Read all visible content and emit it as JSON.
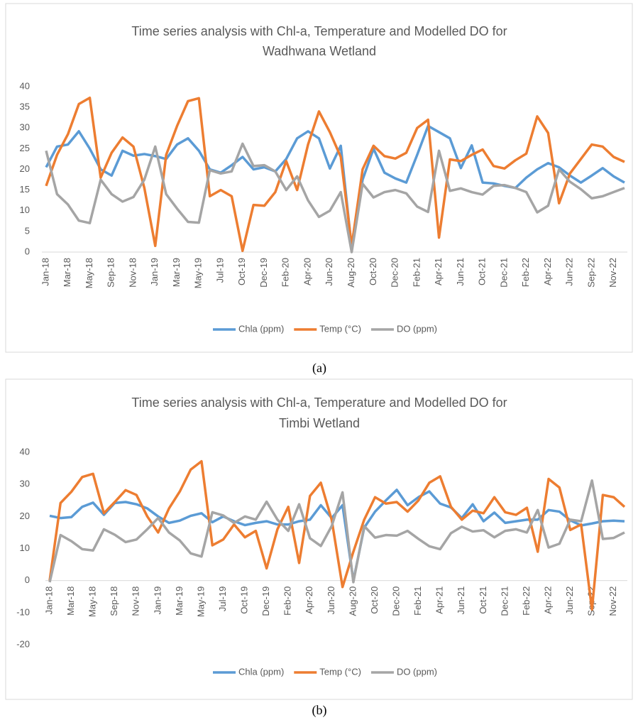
{
  "chart_data": [
    {
      "type": "line",
      "panel_label": "(a)",
      "title": [
        "Time series analysis with Chl-a, Temperature and Modelled DO for",
        "Wadhwana Wetland"
      ],
      "categories": [
        "Jan-18",
        null,
        "Mar-18",
        null,
        "May-18",
        null,
        "Sep-18",
        null,
        "Nov-18",
        null,
        "Jan-19",
        null,
        "Mar-19",
        null,
        "May-19",
        null,
        "Jul-19",
        null,
        "Oct-19",
        null,
        "Dec-19",
        null,
        "Feb-20",
        null,
        "Apr-20",
        null,
        "Jun-20",
        null,
        "Aug-20",
        null,
        "Oct-20",
        null,
        "Dec-20",
        null,
        "Feb-21",
        null,
        "Apr-21",
        null,
        "Jun-21",
        null,
        "Oct-21",
        null,
        "Dec-21",
        null,
        "Feb-22",
        null,
        "Apr-22",
        null,
        "Jun-22",
        null,
        "Sep-22",
        null,
        "Nov-22",
        null
      ],
      "ylim": [
        0,
        40
      ],
      "yticks": [
        0,
        5,
        10,
        15,
        20,
        25,
        30,
        35,
        40
      ],
      "grid": false,
      "legend": "bottom",
      "series": [
        {
          "name": "Chla (ppm)",
          "color": "#5b9bd5",
          "values": [
            20.5,
            25.5,
            26,
            29.2,
            25,
            20,
            18.5,
            24.5,
            23.3,
            23.7,
            23.2,
            22.5,
            26,
            27.5,
            24.5,
            20,
            19.2,
            21,
            23,
            20,
            20.5,
            19.5,
            22.5,
            27.5,
            29.2,
            27.5,
            20.2,
            25.7,
            1,
            17.5,
            25,
            19.2,
            17.8,
            16.8,
            23.5,
            30.5,
            29,
            27.5,
            20.3,
            25.8,
            16.8,
            16.6,
            16,
            15.5,
            18,
            20,
            21.5,
            20.5,
            18.5,
            16.8,
            18.5,
            20.3,
            18.3,
            16.8
          ]
        },
        {
          "name": "Temp (°C)",
          "color": "#ed7d31",
          "values": [
            16,
            23.5,
            28.5,
            35.8,
            37.3,
            18,
            24,
            27.7,
            25.5,
            15.5,
            1.5,
            23.5,
            30.5,
            36.5,
            37.2,
            13.5,
            15,
            13.5,
            0.3,
            11.4,
            11.2,
            14.5,
            22,
            15,
            26,
            34,
            29,
            23,
            1.5,
            20,
            25.7,
            23.2,
            22.6,
            24,
            30,
            32,
            3.5,
            22.4,
            22,
            23.5,
            24.8,
            20.8,
            20.2,
            22.2,
            23.8,
            32.8,
            28.8,
            11.8,
            19,
            22.5,
            26,
            25.5,
            23,
            21.8
          ]
        },
        {
          "name": "DO (ppm)",
          "color": "#a5a5a5",
          "values": [
            24.5,
            14,
            11.5,
            7.6,
            7,
            17.5,
            14,
            12.2,
            13.3,
            17.5,
            25.5,
            14,
            10.5,
            7.3,
            7.1,
            19.8,
            19,
            19.5,
            26.2,
            20.8,
            21,
            19.5,
            15,
            18.3,
            12.5,
            8.5,
            10,
            14.5,
            0,
            16.5,
            13.2,
            14.5,
            15,
            14.2,
            11,
            9.7,
            24.5,
            14.8,
            15.4,
            14.5,
            13.9,
            16,
            16.2,
            15.5,
            14.5,
            9.6,
            11.2,
            20,
            17,
            15.2,
            13,
            13.5,
            14.5,
            15.5
          ]
        }
      ]
    },
    {
      "type": "line",
      "panel_label": "(b)",
      "title": [
        "Time series analysis with Chl-a, Temperature and Modelled DO for",
        "Timbi Wetland"
      ],
      "categories": [
        "Jan-18",
        null,
        "Mar-18",
        null,
        "May-18",
        null,
        "Sep-18",
        null,
        "Nov-18",
        null,
        "Jan-19",
        null,
        "Mar-19",
        null,
        "May-19",
        null,
        "Jul-19",
        null,
        "Oct-19",
        null,
        "Dec-19",
        null,
        "Feb-20",
        null,
        "Apr-20",
        null,
        "Jun-20",
        null,
        "Aug-20",
        null,
        "Oct-20",
        null,
        "Dec-20",
        null,
        "Feb-21",
        null,
        "Apr-21",
        null,
        "Jun-21",
        null,
        "Oct-21",
        null,
        "Dec-21",
        null,
        "Feb-22",
        null,
        "Apr-22",
        null,
        "Jun-22",
        null,
        "Sep-22",
        null,
        "Nov-22",
        null
      ],
      "ylim": [
        -20,
        40
      ],
      "yticks": [
        -20,
        -10,
        0,
        10,
        20,
        30,
        40
      ],
      "grid": false,
      "legend": "bottom",
      "series": [
        {
          "name": "Chla (ppm)",
          "color": "#5b9bd5",
          "values": [
            20.2,
            19.5,
            19.8,
            23,
            24.3,
            20.5,
            24.2,
            24.5,
            23.8,
            22.5,
            20,
            18,
            18.7,
            20.2,
            21,
            18.2,
            20,
            18.5,
            17.3,
            18,
            18.5,
            17.5,
            17.5,
            18.5,
            19,
            23.5,
            19.5,
            23.5,
            0,
            16.5,
            21.5,
            25,
            28.3,
            23.5,
            26,
            27.8,
            24,
            22.8,
            19.5,
            23.8,
            18.5,
            21.2,
            18,
            18.5,
            19,
            19,
            22,
            21.5,
            18.8,
            17.2,
            17.8,
            18.5,
            18.7,
            18.5
          ]
        },
        {
          "name": "Temp (°C)",
          "color": "#ed7d31",
          "values": [
            0,
            24.2,
            27.7,
            32.3,
            33.3,
            21,
            24.5,
            28.2,
            26.7,
            20,
            15,
            22.5,
            27.8,
            34.6,
            37.2,
            11,
            12.8,
            17.5,
            13.5,
            15.5,
            3.8,
            16,
            23,
            5.5,
            26.4,
            30.5,
            19,
            -2,
            9,
            19,
            26,
            24,
            24.5,
            21.5,
            25,
            30.5,
            32.5,
            23,
            19,
            21.8,
            21,
            26,
            21.3,
            20.5,
            22.7,
            9,
            31.7,
            29,
            15.8,
            17.5,
            -9,
            26.7,
            26,
            23
          ]
        },
        {
          "name": "DO (ppm)",
          "color": "#a5a5a5",
          "values": [
            -0.5,
            14.2,
            12.3,
            9.8,
            9.4,
            16,
            14.3,
            12,
            12.8,
            16,
            19.5,
            15,
            12.5,
            8.5,
            7.5,
            21.3,
            20.3,
            18,
            20,
            19,
            24.6,
            19,
            15.5,
            23.8,
            13.2,
            10.8,
            17,
            27.5,
            -0.5,
            17,
            13.4,
            14.2,
            14,
            15.5,
            13,
            10.7,
            9.8,
            14.8,
            16.8,
            15.3,
            15.7,
            13.5,
            15.5,
            16,
            15,
            22,
            10.3,
            11.5,
            19,
            18.5,
            31.2,
            13,
            13.3,
            15
          ]
        }
      ]
    }
  ]
}
